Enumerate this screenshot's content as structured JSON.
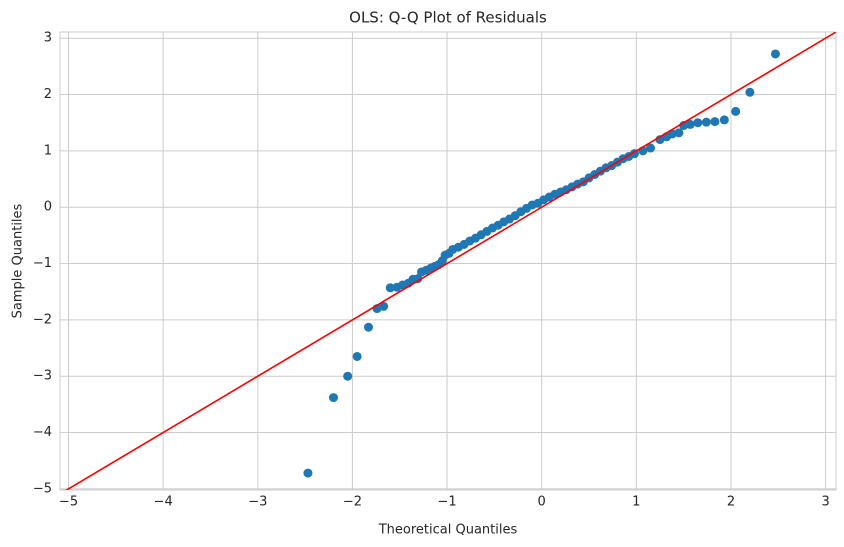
{
  "chart_data": {
    "type": "scatter",
    "title": "OLS: Q-Q Plot of Residuals",
    "x_label": "Theoretical Quantiles",
    "y_label": "Sample Quantiles",
    "color": "#1f77b4",
    "x": [
      -2.47,
      -2.2,
      -2.05,
      -1.95,
      -1.83,
      -1.74,
      -1.67,
      -1.6,
      -1.53,
      -1.47,
      -1.41,
      -1.36,
      -1.31,
      -1.27,
      -1.22,
      -1.17,
      -1.13,
      -1.09,
      -1.05,
      -1.02,
      -0.98,
      -0.94,
      -0.88,
      -0.82,
      -0.76,
      -0.7,
      -0.64,
      -0.58,
      -0.52,
      -0.46,
      -0.4,
      -0.34,
      -0.28,
      -0.22,
      -0.16,
      -0.1,
      -0.04,
      0.02,
      0.08,
      0.14,
      0.2,
      0.26,
      0.32,
      0.38,
      0.44,
      0.5,
      0.56,
      0.62,
      0.68,
      0.74,
      0.8,
      0.86,
      0.92,
      0.98,
      1.07,
      1.15,
      1.25,
      1.32,
      1.38,
      1.45,
      1.5,
      1.57,
      1.65,
      1.74,
      1.83,
      1.93,
      2.05,
      2.2,
      2.47
    ],
    "values": [
      -4.72,
      -3.38,
      -3.0,
      -2.65,
      -2.13,
      -1.8,
      -1.76,
      -1.43,
      -1.42,
      -1.38,
      -1.35,
      -1.28,
      -1.27,
      -1.15,
      -1.12,
      -1.08,
      -1.05,
      -1.02,
      -0.95,
      -0.85,
      -0.82,
      -0.75,
      -0.71,
      -0.66,
      -0.6,
      -0.55,
      -0.49,
      -0.43,
      -0.37,
      -0.32,
      -0.26,
      -0.21,
      -0.15,
      -0.08,
      -0.02,
      0.04,
      0.07,
      0.13,
      0.18,
      0.23,
      0.27,
      0.31,
      0.36,
      0.41,
      0.45,
      0.52,
      0.58,
      0.64,
      0.7,
      0.74,
      0.8,
      0.86,
      0.9,
      0.95,
      1.0,
      1.05,
      1.2,
      1.25,
      1.3,
      1.32,
      1.45,
      1.47,
      1.5,
      1.51,
      1.52,
      1.55,
      1.7,
      2.04,
      2.72
    ],
    "line": {
      "color": "#ff0000",
      "x": [
        -5.09,
        3.11
      ],
      "values": [
        -5.09,
        3.11
      ]
    },
    "xlim": [
      -5.09,
      3.11
    ],
    "ylim": [
      -5.02,
      3.11
    ],
    "xticks": [
      {
        "value": -5,
        "label": "−5"
      },
      {
        "value": -4,
        "label": "−4"
      },
      {
        "value": -3,
        "label": "−3"
      },
      {
        "value": -2,
        "label": "−2"
      },
      {
        "value": -1,
        "label": "−1"
      },
      0,
      1,
      2,
      3
    ],
    "yticks": [
      {
        "value": -5,
        "label": "−5"
      },
      {
        "value": -4,
        "label": "−4"
      },
      {
        "value": -3,
        "label": "−3"
      },
      {
        "value": -2,
        "label": "−2"
      },
      {
        "value": -1,
        "label": "−1"
      },
      0,
      1,
      2,
      3
    ],
    "grid": true
  }
}
